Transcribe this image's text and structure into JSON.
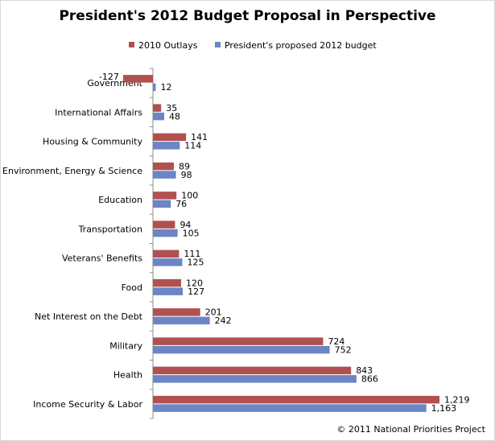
{
  "title": "President's 2012 Budget Proposal  in Perspective",
  "copyright": "© 2011 National Priorities Project",
  "colors": {
    "series1": "#b05150",
    "series2": "#6b85c5",
    "axis": "#8c8c8c"
  },
  "chart_data": {
    "type": "bar",
    "orientation": "horizontal",
    "title": "President's 2012 Budget Proposal  in Perspective",
    "categories": [
      "Government",
      "International Affairs",
      "Housing & Community",
      "Environment, Energy & Science",
      "Education",
      "Transportation",
      "Veterans' Benefits",
      "Food",
      "Net Interest on the Debt",
      "Military",
      "Health",
      "Income Security & Labor"
    ],
    "series": [
      {
        "name": "2010 Outlays",
        "values": [
          -127,
          35,
          141,
          89,
          100,
          94,
          111,
          120,
          201,
          724,
          843,
          1219
        ],
        "labels": [
          "-127",
          "35",
          "141",
          "89",
          "100",
          "94",
          "111",
          "120",
          "201",
          "724",
          "843",
          "1,219"
        ]
      },
      {
        "name": "President's proposed 2012 budget",
        "values": [
          12,
          48,
          114,
          98,
          76,
          105,
          125,
          127,
          242,
          752,
          866,
          1163
        ],
        "labels": [
          "12",
          "48",
          "114",
          "98",
          "76",
          "105",
          "125",
          "127",
          "242",
          "752",
          "866",
          "1,163"
        ]
      }
    ],
    "xlim": [
      -127,
      1219
    ],
    "legend": "top",
    "grid": false
  }
}
